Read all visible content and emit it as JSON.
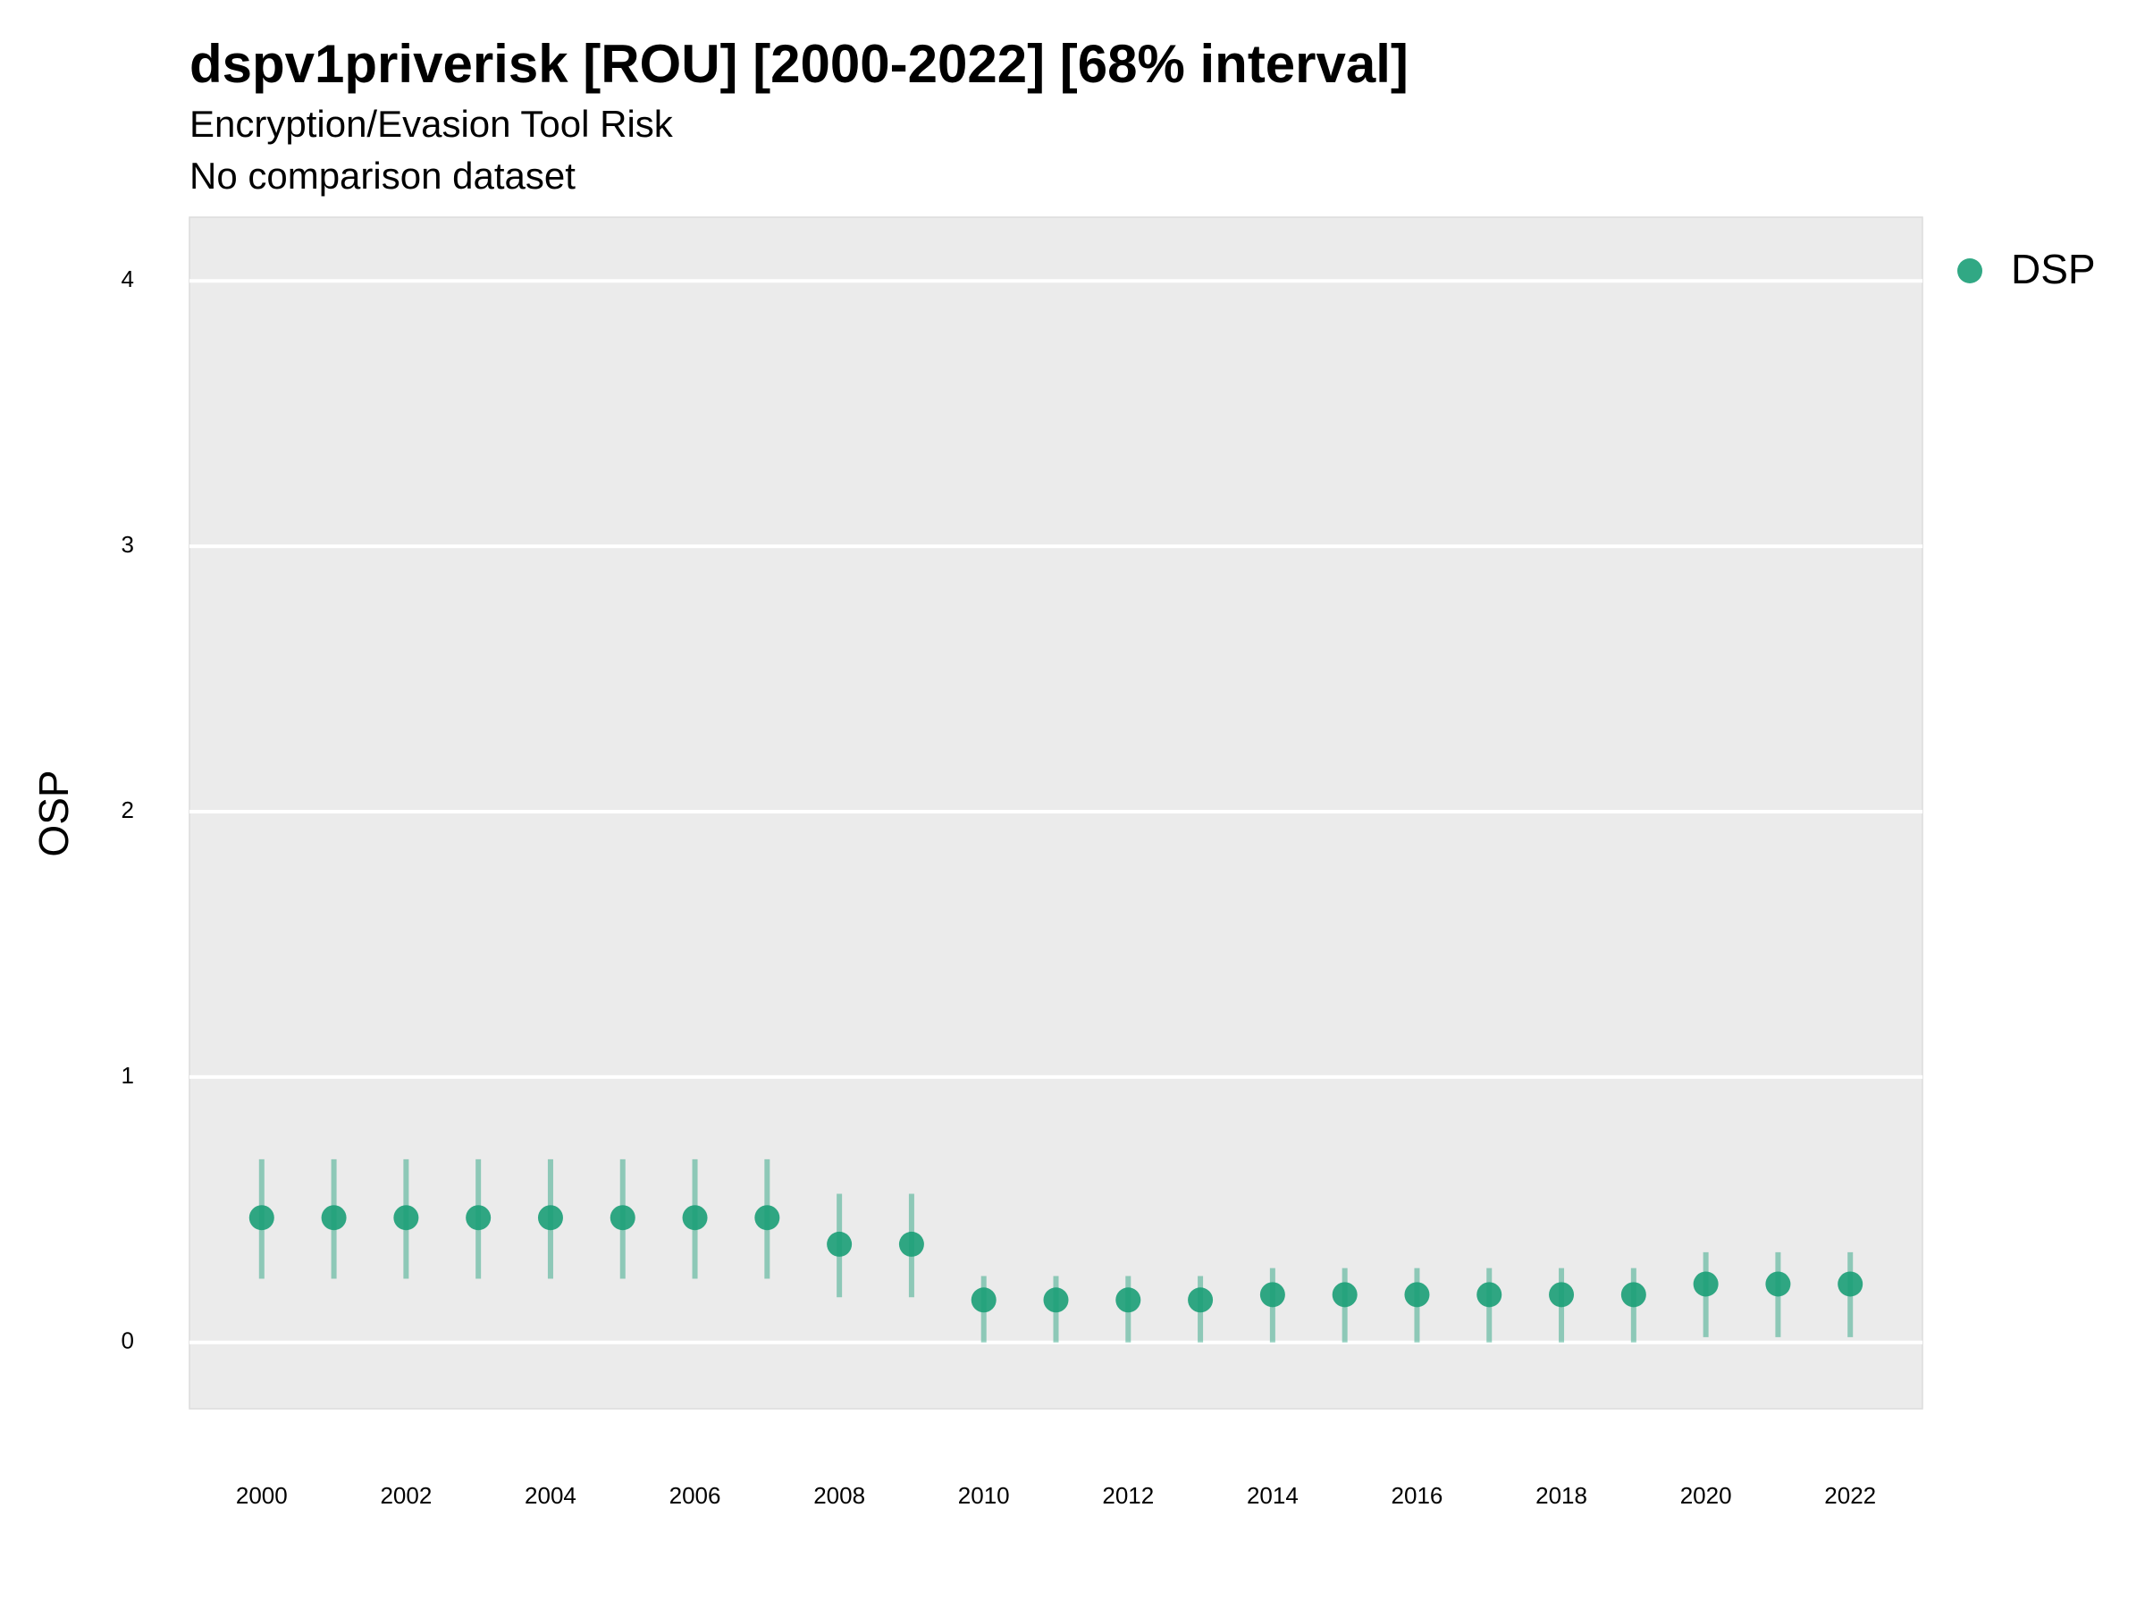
{
  "chart_data": {
    "type": "pointrange",
    "title": "dspv1priverisk [ROU] [2000-2022] [68% interval]",
    "subtitle": "Encryption/Evasion Tool Risk",
    "caption": "No comparison dataset",
    "y_label": "OSP",
    "x": [
      2000,
      2001,
      2002,
      2003,
      2004,
      2005,
      2006,
      2007,
      2008,
      2009,
      2010,
      2011,
      2012,
      2013,
      2014,
      2015,
      2016,
      2017,
      2018,
      2019,
      2020,
      2021,
      2022
    ],
    "series": [
      {
        "name": "DSP",
        "color": "#1b9e77",
        "values": [
          0.47,
          0.47,
          0.47,
          0.47,
          0.47,
          0.47,
          0.47,
          0.47,
          0.37,
          0.37,
          0.16,
          0.16,
          0.16,
          0.16,
          0.18,
          0.18,
          0.18,
          0.18,
          0.18,
          0.18,
          0.22,
          0.22,
          0.22
        ],
        "lower": [
          0.24,
          0.24,
          0.24,
          0.24,
          0.24,
          0.24,
          0.24,
          0.24,
          0.17,
          0.17,
          0.0,
          0.0,
          0.0,
          0.0,
          0.0,
          0.0,
          0.0,
          0.0,
          0.0,
          0.0,
          0.02,
          0.02,
          0.02
        ],
        "upper": [
          0.69,
          0.69,
          0.69,
          0.69,
          0.69,
          0.69,
          0.69,
          0.69,
          0.56,
          0.56,
          0.25,
          0.25,
          0.25,
          0.25,
          0.28,
          0.28,
          0.28,
          0.28,
          0.28,
          0.28,
          0.34,
          0.34,
          0.34
        ]
      }
    ],
    "xlim": [
      1999,
      2023
    ],
    "xticks": [
      2000,
      2002,
      2004,
      2006,
      2008,
      2010,
      2012,
      2014,
      2016,
      2018,
      2020,
      2022
    ],
    "ylim": [
      -0.25,
      4.24
    ],
    "yticks": [
      0,
      1,
      2,
      3,
      4
    ],
    "grid": true,
    "legend": "right"
  }
}
